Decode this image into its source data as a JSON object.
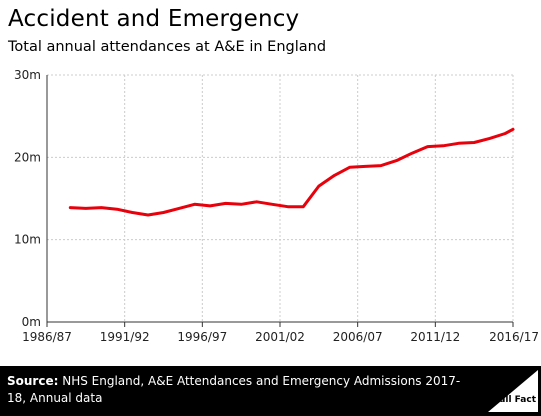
{
  "header": {
    "title": "Accident and Emergency",
    "subtitle": "Total annual attendances at A&E in England"
  },
  "chart_data": {
    "type": "line",
    "title": "Accident and Emergency",
    "subtitle": "Total annual attendances at A&E in England",
    "xlabel": "",
    "ylabel": "",
    "ylim": [
      0,
      30
    ],
    "grid": true,
    "x_tick_labels": [
      "1986/87",
      "1991/92",
      "1996/97",
      "2001/02",
      "2006/07",
      "2011/12",
      "2016/17"
    ],
    "y_tick_labels": [
      "0m",
      "10m",
      "20m",
      "30m"
    ],
    "y_ticks": [
      0,
      10,
      20,
      30
    ],
    "color": "#e8000b",
    "x": [
      "1987/88",
      "1988/89",
      "1989/90",
      "1990/91",
      "1991/92",
      "1992/93",
      "1993/94",
      "1994/95",
      "1995/96",
      "1996/97",
      "1997/98",
      "1998/99",
      "1999/00",
      "2000/01",
      "2001/02",
      "2002/03",
      "2003/04",
      "2004/05",
      "2005/06",
      "2006/07",
      "2007/08",
      "2008/09",
      "2009/10",
      "2010/11",
      "2011/12",
      "2012/13",
      "2013/14",
      "2014/15",
      "2015/16",
      "2016/17",
      "2017/18"
    ],
    "values": [
      13.9,
      13.8,
      13.9,
      13.7,
      13.3,
      13.0,
      13.3,
      13.8,
      14.3,
      14.1,
      14.4,
      14.3,
      14.6,
      14.3,
      14.0,
      14.0,
      16.5,
      17.8,
      18.8,
      18.9,
      19.0,
      19.6,
      20.5,
      21.3,
      21.4,
      21.7,
      21.8,
      22.3,
      22.9,
      23.4,
      23.4
    ]
  },
  "footer": {
    "source_label": "Source:",
    "source_text": "NHS England, A&E Attendances and Emergency Admissions 2017-18, Annual data",
    "logo_text": "Full Fact"
  }
}
